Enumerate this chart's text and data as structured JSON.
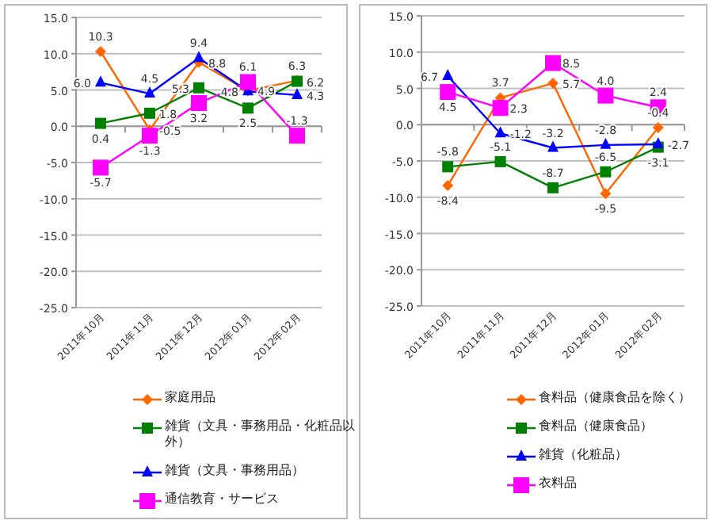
{
  "chart_data": [
    {
      "type": "line",
      "categories": [
        "2011年10月",
        "2011年11月",
        "2011年12月",
        "2012年01月",
        "2012年02月"
      ],
      "ylim": [
        -25,
        15
      ],
      "yticks": [
        {
          "value": 15,
          "label": "15.0"
        },
        {
          "value": 10,
          "label": "10.0"
        },
        {
          "value": 5,
          "label": "5.0"
        },
        {
          "value": 0,
          "label": "0.0"
        },
        {
          "value": -5,
          "label": "-5.0"
        },
        {
          "value": -10,
          "label": "-10.0"
        },
        {
          "value": -15,
          "label": "-15.0"
        },
        {
          "value": -20,
          "label": "-20.0"
        },
        {
          "value": -25,
          "label": "-25.0"
        }
      ],
      "grid": "y",
      "legend": "bottom",
      "series": [
        {
          "name": "家庭用品",
          "color": "#ff6600",
          "marker": "diamond",
          "values": [
            10.3,
            -0.5,
            8.8,
            4.9,
            6.3
          ],
          "value_labels": [
            "10.3",
            "-0.5",
            "8.8",
            "4.9",
            "6.3"
          ]
        },
        {
          "name": "雑貨（文具・事務用品・化粧品以外）",
          "color": "#008000",
          "marker": "square",
          "values": [
            0.4,
            1.8,
            5.3,
            2.5,
            6.2
          ],
          "value_labels": [
            "0.4",
            "1.8",
            "5.3",
            "2.5",
            "6.2"
          ]
        },
        {
          "name": "雑貨（文具・事務用品）",
          "color": "#0000ff",
          "marker": "triangle",
          "values": [
            6.0,
            4.5,
            9.4,
            4.8,
            4.3
          ],
          "value_labels": [
            "6.0",
            "4.5",
            "9.4",
            "4.8",
            "4.3"
          ]
        },
        {
          "name": "通信教育・サービス",
          "color": "#ff00ff",
          "marker": "square",
          "values": [
            -5.7,
            -1.3,
            3.2,
            6.1,
            -1.3
          ],
          "value_labels": [
            "-5.7",
            "-1.3",
            "3.2",
            "6.1",
            "-1.3"
          ]
        }
      ]
    },
    {
      "type": "line",
      "categories": [
        "2011年10月",
        "2011年11月",
        "2011年12月",
        "2012年01月",
        "2012年02月"
      ],
      "ylim": [
        -25,
        15
      ],
      "yticks": [
        {
          "value": 15,
          "label": "15.0"
        },
        {
          "value": 10,
          "label": "10.0"
        },
        {
          "value": 5,
          "label": "5.0"
        },
        {
          "value": 0,
          "label": "0.0"
        },
        {
          "value": -5,
          "label": "-5.0"
        },
        {
          "value": -10,
          "label": "-10.0"
        },
        {
          "value": -15,
          "label": "-15.0"
        },
        {
          "value": -20,
          "label": "-20.0"
        },
        {
          "value": -25,
          "label": "-25.0"
        }
      ],
      "grid": "y",
      "legend": "bottom",
      "series": [
        {
          "name": "食料品（健康食品を除く）",
          "color": "#ff6600",
          "marker": "diamond",
          "values": [
            -8.4,
            3.7,
            5.7,
            -9.5,
            -0.4
          ],
          "value_labels": [
            "-8.4",
            "3.7",
            "5.7",
            "-9.5",
            "-0.4"
          ]
        },
        {
          "name": "食料品（健康食品）",
          "color": "#008000",
          "marker": "square",
          "values": [
            -5.8,
            -5.1,
            -8.7,
            -6.5,
            -3.1
          ],
          "value_labels": [
            "-5.8",
            "-5.1",
            "-8.7",
            "-6.5",
            "-3.1"
          ]
        },
        {
          "name": "雑貨（化粧品）",
          "color": "#0000ff",
          "marker": "triangle",
          "values": [
            6.7,
            -1.2,
            -3.2,
            -2.8,
            -2.7
          ],
          "value_labels": [
            "6.7",
            "-1.2",
            "-3.2",
            "-2.8",
            "-2.7"
          ]
        },
        {
          "name": "衣料品",
          "color": "#ff00ff",
          "marker": "square",
          "values": [
            4.5,
            2.3,
            8.5,
            4.0,
            2.4
          ],
          "value_labels": [
            "4.5",
            "2.3",
            "8.5",
            "4.0",
            "2.4"
          ]
        }
      ]
    }
  ]
}
